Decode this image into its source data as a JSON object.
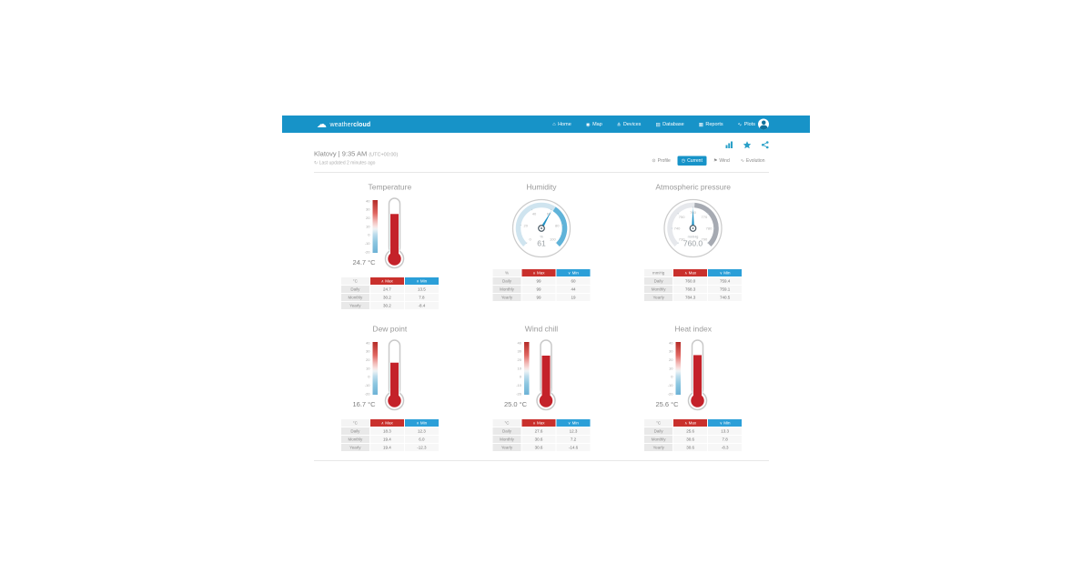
{
  "navbar": {
    "brand": {
      "weather": "weather",
      "cloud": "cloud"
    },
    "items": [
      {
        "label": "Home",
        "icon": "home-icon"
      },
      {
        "label": "Map",
        "icon": "map-icon"
      },
      {
        "label": "Devices",
        "icon": "devices-icon"
      },
      {
        "label": "Database",
        "icon": "database-icon"
      },
      {
        "label": "Reports",
        "icon": "reports-icon"
      },
      {
        "label": "Plots",
        "icon": "plots-icon"
      }
    ]
  },
  "station": {
    "name": "Klatovy",
    "sep": " | ",
    "time": "9:35 AM",
    "utc": "(UTC+00:00)",
    "last_updated": "Last updated 2 minutes ago"
  },
  "view_tabs": [
    {
      "label": "Profile",
      "icon": "profile-icon",
      "active": false
    },
    {
      "label": "Current",
      "icon": "current-icon",
      "active": true
    },
    {
      "label": "Wind",
      "icon": "wind-icon",
      "active": false
    },
    {
      "label": "Evolution",
      "icon": "evolution-icon",
      "active": false
    }
  ],
  "stats_header": {
    "max": "Max",
    "min": "Min"
  },
  "colors": {
    "navbar_blue": "#1793c8",
    "accent_teal": "#2aa0c8",
    "max_red": "#c9302c",
    "min_blue": "#2b9fd8",
    "thermo_red": "#c4222a",
    "needle_teal": "#2193c6"
  },
  "cards": [
    {
      "id": "temperature",
      "title": "Temperature",
      "type": "thermometer",
      "unit": "°C",
      "display_value": "24.7 °C",
      "value": 24.7,
      "scale": {
        "min": -20,
        "max": 40,
        "ticks": [
          40,
          30,
          20,
          10,
          0,
          -10,
          -20
        ]
      },
      "table": {
        "unit_label": "°C",
        "rows": [
          {
            "label": "Daily",
            "max": "24.7",
            "min": "13.5"
          },
          {
            "label": "Monthly",
            "max": "30.2",
            "min": "7.8"
          },
          {
            "label": "Yearly",
            "max": "30.2",
            "min": "-8.4"
          }
        ]
      }
    },
    {
      "id": "humidity",
      "title": "Humidity",
      "type": "dial",
      "unit": "%",
      "display_value": "61",
      "value": 61,
      "scale": {
        "min": 0,
        "max": 100,
        "ticks": [
          0,
          20,
          40,
          60,
          80,
          100
        ]
      },
      "dial_colors": {
        "track": "#cfe4ef",
        "active": "#5fb3d9"
      },
      "table": {
        "unit_label": "%",
        "rows": [
          {
            "label": "Daily",
            "max": "99",
            "min": "60"
          },
          {
            "label": "Monthly",
            "max": "99",
            "min": "44"
          },
          {
            "label": "Yearly",
            "max": "99",
            "min": "19"
          }
        ]
      }
    },
    {
      "id": "pressure",
      "title": "Atmospheric pressure",
      "type": "dial",
      "unit": "mmHg",
      "display_value": "760.0",
      "value": 760.0,
      "scale": {
        "min": 730,
        "max": 790,
        "ticks": [
          730,
          740,
          750,
          760,
          770,
          780,
          790
        ]
      },
      "dial_colors": {
        "track": "#e6e8ec",
        "active": "#a6aab2"
      },
      "table": {
        "unit_label": "mmHg",
        "rows": [
          {
            "label": "Daily",
            "max": "760.0",
            "min": "759.4"
          },
          {
            "label": "Monthly",
            "max": "768.3",
            "min": "759.1"
          },
          {
            "label": "Yearly",
            "max": "784.3",
            "min": "740.5"
          }
        ]
      }
    },
    {
      "id": "dew-point",
      "title": "Dew point",
      "type": "thermometer",
      "unit": "°C",
      "display_value": "16.7 °C",
      "value": 16.7,
      "scale": {
        "min": -20,
        "max": 40,
        "ticks": [
          40,
          30,
          20,
          10,
          0,
          -10,
          -20
        ]
      },
      "table": {
        "unit_label": "°C",
        "rows": [
          {
            "label": "Daily",
            "max": "18.3",
            "min": "12.3"
          },
          {
            "label": "Monthly",
            "max": "19.4",
            "min": "6.0"
          },
          {
            "label": "Yearly",
            "max": "19.4",
            "min": "-12.3"
          }
        ]
      }
    },
    {
      "id": "wind-chill",
      "title": "Wind chill",
      "type": "thermometer",
      "unit": "°C",
      "display_value": "25.0 °C",
      "value": 25.0,
      "scale": {
        "min": -20,
        "max": 40,
        "ticks": [
          40,
          30,
          20,
          10,
          0,
          -10,
          -20
        ]
      },
      "table": {
        "unit_label": "°C",
        "rows": [
          {
            "label": "Daily",
            "max": "27.6",
            "min": "12.3"
          },
          {
            "label": "Monthly",
            "max": "30.6",
            "min": "7.2"
          },
          {
            "label": "Yearly",
            "max": "30.6",
            "min": "-14.6"
          }
        ]
      }
    },
    {
      "id": "heat-index",
      "title": "Heat index",
      "type": "thermometer",
      "unit": "°C",
      "display_value": "25.6 °C",
      "value": 25.6,
      "scale": {
        "min": -20,
        "max": 40,
        "ticks": [
          40,
          30,
          20,
          10,
          0,
          -10,
          -20
        ]
      },
      "table": {
        "unit_label": "°C",
        "rows": [
          {
            "label": "Daily",
            "max": "25.6",
            "min": "13.3"
          },
          {
            "label": "Monthly",
            "max": "30.6",
            "min": "7.8"
          },
          {
            "label": "Yearly",
            "max": "30.6",
            "min": "-8.3"
          }
        ]
      }
    }
  ]
}
